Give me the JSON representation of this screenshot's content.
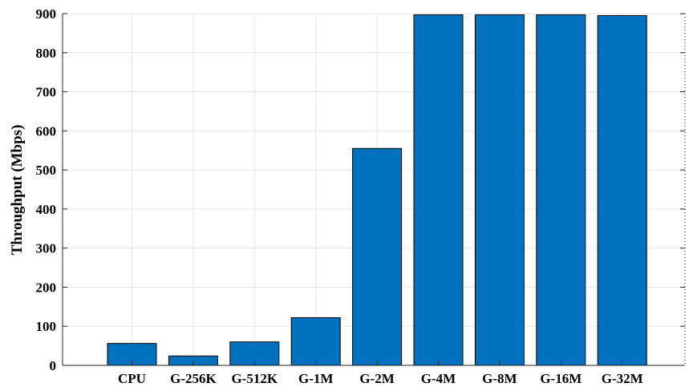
{
  "chart_data": {
    "type": "bar",
    "title": "",
    "xlabel": "",
    "ylabel": "Throughput (Mbps)",
    "ylim": [
      0,
      900
    ],
    "yticks": [
      0,
      100,
      200,
      300,
      400,
      500,
      600,
      700,
      800,
      900
    ],
    "categories": [
      "CPU",
      "G-256K",
      "G-512K",
      "G-1M",
      "G-2M",
      "G-4M",
      "G-8M",
      "G-16M",
      "G-32M"
    ],
    "values": [
      56,
      24,
      60,
      122,
      555,
      897,
      897,
      897,
      895
    ],
    "bar_color": "#0072BD",
    "grid": true
  }
}
